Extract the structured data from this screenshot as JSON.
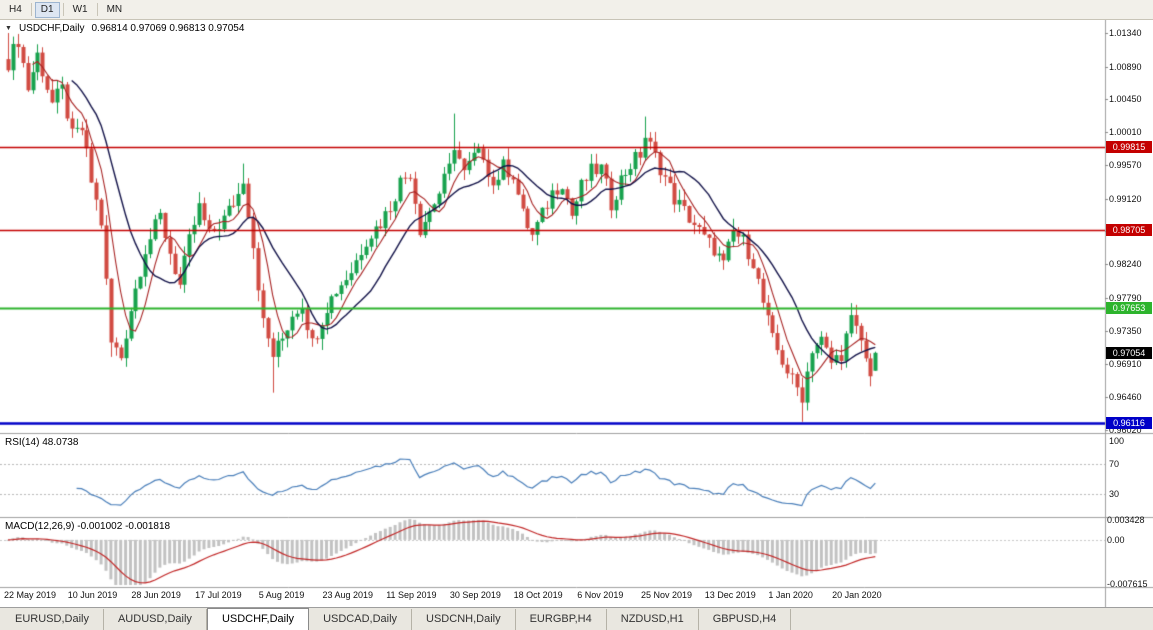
{
  "toolbar": {
    "buttons": [
      {
        "label": "H4",
        "active": false
      },
      {
        "label": "D1",
        "active": true
      },
      {
        "label": "W1",
        "active": false
      },
      {
        "label": "MN",
        "active": false
      }
    ]
  },
  "chart_header": {
    "symbol_timeframe": "USDCHF,Daily",
    "ohlc": "0.96814 0.97069 0.96813 0.97054"
  },
  "y_axis_labels": [
    "1.01340",
    "1.00890",
    "1.00450",
    "1.00010",
    "0.99570",
    "0.99120",
    "0.98680",
    "0.98240",
    "0.97790",
    "0.97350",
    "0.96910",
    "0.96460",
    "0.96020"
  ],
  "x_axis_labels": [
    "22 May 2019",
    "10 Jun 2019",
    "28 Jun 2019",
    "17 Jul 2019",
    "5 Aug 2019",
    "23 Aug 2019",
    "11 Sep 2019",
    "30 Sep 2019",
    "18 Oct 2019",
    "6 Nov 2019",
    "25 Nov 2019",
    "13 Dec 2019",
    "1 Jan 2020",
    "20 Jan 2020"
  ],
  "tabs": {
    "items": [
      {
        "label": "EURUSD,Daily",
        "active": false
      },
      {
        "label": "AUDUSD,Daily",
        "active": false
      },
      {
        "label": "USDCHF,Daily",
        "active": true
      },
      {
        "label": "USDCAD,Daily",
        "active": false
      },
      {
        "label": "USDCNH,Daily",
        "active": false
      },
      {
        "label": "EURGBP,H4",
        "active": false
      },
      {
        "label": "NZDUSD,H1",
        "active": false
      },
      {
        "label": "GBPUSD,H4",
        "active": false
      }
    ]
  },
  "chart_data": {
    "type": "candlestick",
    "symbol": "USDCHF",
    "timeframe": "Daily",
    "title": "USDCHF,Daily",
    "ohlc_current": {
      "open": 0.96814,
      "high": 0.97069,
      "low": 0.96813,
      "close": 0.97054
    },
    "candle_count": 178,
    "y_axis_range": {
      "top": 1.01357,
      "bottom": 0.9602
    },
    "price_anchors": [
      [
        0,
        1.0095
      ],
      [
        2,
        1.0125
      ],
      [
        4,
        1.006
      ],
      [
        6,
        1.0105
      ],
      [
        9,
        1.004
      ],
      [
        11,
        1.0058
      ],
      [
        13,
        0.9995
      ],
      [
        15,
        1.0005
      ],
      [
        17,
        0.9935
      ],
      [
        19,
        0.988
      ],
      [
        21,
        0.9718
      ],
      [
        23,
        0.97
      ],
      [
        25,
        0.9765
      ],
      [
        28,
        0.9845
      ],
      [
        31,
        0.9888
      ],
      [
        33,
        0.984
      ],
      [
        35,
        0.9795
      ],
      [
        37,
        0.9855
      ],
      [
        39,
        0.99
      ],
      [
        41,
        0.9862
      ],
      [
        44,
        0.9885
      ],
      [
        47,
        0.9918
      ],
      [
        48,
        0.994
      ],
      [
        50,
        0.985
      ],
      [
        52,
        0.9745
      ],
      [
        54,
        0.9702
      ],
      [
        56,
        0.9725
      ],
      [
        58,
        0.9758
      ],
      [
        60,
        0.9772
      ],
      [
        62,
        0.9718
      ],
      [
        65,
        0.9768
      ],
      [
        67,
        0.979
      ],
      [
        70,
        0.9815
      ],
      [
        73,
        0.9858
      ],
      [
        76,
        0.988
      ],
      [
        78,
        0.9902
      ],
      [
        80,
        0.9935
      ],
      [
        82,
        0.9948
      ],
      [
        84,
        0.9872
      ],
      [
        86,
        0.9895
      ],
      [
        88,
        0.992
      ],
      [
        90,
        0.9952
      ],
      [
        91,
        0.9985
      ],
      [
        93,
        0.9945
      ],
      [
        95,
        0.9968
      ],
      [
        97,
        0.9972
      ],
      [
        99,
        0.993
      ],
      [
        101,
        0.9955
      ],
      [
        103,
        0.9945
      ],
      [
        105,
        0.989
      ],
      [
        107,
        0.9862
      ],
      [
        109,
        0.989
      ],
      [
        111,
        0.992
      ],
      [
        113,
        0.9935
      ],
      [
        115,
        0.989
      ],
      [
        117,
        0.9928
      ],
      [
        119,
        0.9948
      ],
      [
        121,
        0.9952
      ],
      [
        123,
        0.9905
      ],
      [
        125,
        0.9938
      ],
      [
        127,
        0.9958
      ],
      [
        129,
        0.9972
      ],
      [
        130,
        0.9995
      ],
      [
        132,
        0.9968
      ],
      [
        134,
        0.994
      ],
      [
        136,
        0.9912
      ],
      [
        138,
        0.9895
      ],
      [
        140,
        0.9878
      ],
      [
        142,
        0.9858
      ],
      [
        144,
        0.9845
      ],
      [
        146,
        0.9822
      ],
      [
        148,
        0.9868
      ],
      [
        150,
        0.9855
      ],
      [
        152,
        0.9828
      ],
      [
        154,
        0.9772
      ],
      [
        156,
        0.9722
      ],
      [
        158,
        0.9695
      ],
      [
        160,
        0.9668
      ],
      [
        162,
        0.9648
      ],
      [
        164,
        0.9712
      ],
      [
        166,
        0.9722
      ],
      [
        168,
        0.9692
      ],
      [
        170,
        0.9705
      ],
      [
        172,
        0.9748
      ],
      [
        174,
        0.9722
      ],
      [
        175,
        0.9695
      ],
      [
        176,
        0.9681
      ],
      [
        177,
        0.97054
      ]
    ],
    "wick_overrides": [
      {
        "i": 0,
        "high": 1.0134
      },
      {
        "i": 21,
        "low": 0.97
      },
      {
        "i": 48,
        "high": 0.9959
      },
      {
        "i": 54,
        "low": 0.9652
      },
      {
        "i": 91,
        "high": 1.0026
      },
      {
        "i": 130,
        "high": 1.0022
      },
      {
        "i": 162,
        "low": 0.9613
      },
      {
        "i": 172,
        "high": 0.9772
      }
    ],
    "last_candle": {
      "open": 0.96814,
      "high": 0.97069,
      "low": 0.96813,
      "close": 0.97054
    },
    "horizontal_lines": [
      {
        "name": "resistance-price-tag-upper",
        "price": 0.99815,
        "label": "0.99815",
        "color": "#c40000",
        "width": 1.5
      },
      {
        "name": "resistance-price-tag-lower",
        "price": 0.98705,
        "label": "0.98705",
        "color": "#c40000",
        "width": 1.5
      },
      {
        "name": "support-price-tag-green",
        "price": 0.97653,
        "label": "0.97653",
        "color": "#2db42d",
        "width": 2
      },
      {
        "name": "support-price-tag-blue",
        "price": 0.96116,
        "label": "0.96116",
        "color": "#0000c8",
        "width": 2.5
      }
    ],
    "current_price_tag": {
      "name": "current-price-tag",
      "label": "0.97054",
      "price": 0.97054,
      "color": "#000000"
    },
    "moving_averages": [
      {
        "period": 6,
        "color": "#a82424",
        "width": 1.1
      },
      {
        "period": 14,
        "color": "#14144a",
        "width": 1.4
      }
    ],
    "indicators": {
      "rsi": {
        "label": "RSI(14) 48.0738",
        "period": 14,
        "current": 48.0738,
        "scale_labels": [
          "100",
          "70",
          "30"
        ],
        "scale_values": [
          100,
          70,
          30
        ],
        "level_lines": [
          70,
          30
        ],
        "color": "#4a7fba"
      },
      "macd": {
        "label": "MACD(12,26,9) -0.001002 -0.001818",
        "fast": 12,
        "slow": 26,
        "signal_period": 9,
        "main_current": -0.001002,
        "signal_current": -0.001818,
        "scale_labels": [
          "0.003428",
          "0.00",
          "-0.007615"
        ],
        "scale_values": [
          0.003428,
          0,
          -0.007615
        ],
        "histogram_color": "#c2c2c2",
        "signal_color": "#c22828"
      }
    },
    "colors": {
      "bull": "#18a24e",
      "bear": "#d14b42",
      "background": "#ffffff",
      "separator": "#a0a0a0"
    }
  }
}
